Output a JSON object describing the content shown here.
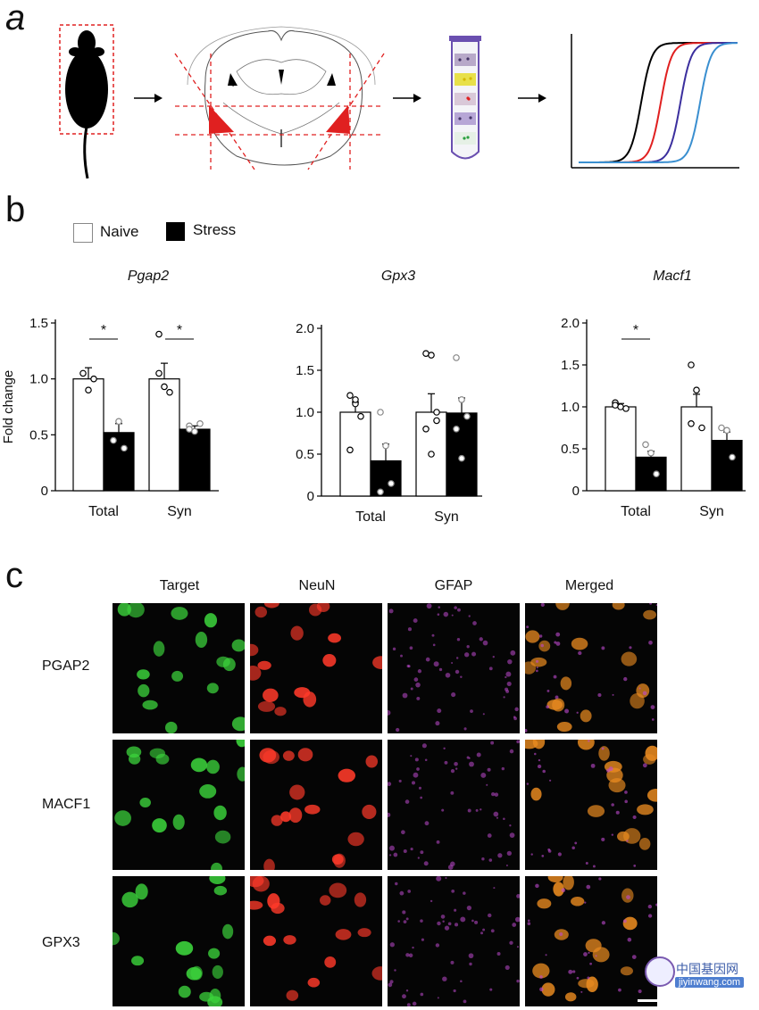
{
  "panels": {
    "a": "a",
    "b": "b",
    "c": "c"
  },
  "legend": {
    "naive": "Naive",
    "stress": "Stress"
  },
  "colors": {
    "naive_fill": "#ffffff",
    "stress_fill": "#000000",
    "red_region": "#e02020"
  },
  "tube_bands": [
    "#b8a9c9",
    "#e8e04a",
    "#d9c8d8",
    "#b7a6d6",
    "#e6f0e6"
  ],
  "panel_a_curve_colors": [
    "#000000",
    "#e02020",
    "#3b2f9e",
    "#3a8fd0"
  ],
  "chart_data": [
    {
      "type": "bar",
      "title": "Pgap2",
      "ylabel": "Fold change",
      "categories": [
        "Total",
        "Syn"
      ],
      "ylim": [
        0,
        1.5
      ],
      "yticks": [
        "0",
        "0.5",
        "1.0",
        "1.5"
      ],
      "series": [
        {
          "name": "Naive",
          "values": [
            1.0,
            1.0
          ],
          "errors": [
            0.1,
            0.14
          ]
        },
        {
          "name": "Stress",
          "values": [
            0.52,
            0.55
          ],
          "errors": [
            0.08,
            0.03
          ]
        }
      ],
      "points": {
        "Naive": [
          [
            1.05,
            0.9,
            1.0
          ],
          [
            1.4,
            0.93,
            0.88,
            1.05
          ]
        ],
        "Stress": [
          [
            0.45,
            0.62,
            0.38
          ],
          [
            0.58,
            0.53,
            0.6,
            0.55
          ]
        ]
      },
      "significance": [
        "*",
        "*"
      ]
    },
    {
      "type": "bar",
      "title": "Gpx3",
      "ylabel": "",
      "categories": [
        "Total",
        "Syn"
      ],
      "ylim": [
        0,
        2.0
      ],
      "yticks": [
        "0",
        "0.5",
        "1.0",
        "1.5",
        "2.0"
      ],
      "series": [
        {
          "name": "Naive",
          "values": [
            1.0,
            1.0
          ],
          "errors": [
            0.12,
            0.22
          ]
        },
        {
          "name": "Stress",
          "values": [
            0.42,
            0.99
          ],
          "errors": [
            0.2,
            0.18
          ]
        }
      ],
      "points": {
        "Naive": [
          [
            1.2,
            1.1,
            0.95,
            0.55,
            1.15
          ],
          [
            1.7,
            1.68,
            0.9,
            0.8,
            0.5,
            1.0
          ]
        ],
        "Stress": [
          [
            1.0,
            0.6,
            0.15,
            0.05
          ],
          [
            1.65,
            1.15,
            0.95,
            0.8,
            0.45
          ]
        ]
      },
      "significance": [
        "",
        ""
      ]
    },
    {
      "type": "bar",
      "title": "Macf1",
      "ylabel": "",
      "categories": [
        "Total",
        "Syn"
      ],
      "ylim": [
        0,
        2.0
      ],
      "yticks": [
        "0",
        "0.5",
        "1.0",
        "1.5",
        "2.0"
      ],
      "series": [
        {
          "name": "Naive",
          "values": [
            1.0,
            1.0
          ],
          "errors": [
            0.04,
            0.15
          ]
        },
        {
          "name": "Stress",
          "values": [
            0.4,
            0.6
          ],
          "errors": [
            0.07,
            0.1
          ]
        }
      ],
      "points": {
        "Naive": [
          [
            1.05,
            1.0,
            0.98,
            1.02
          ],
          [
            1.5,
            1.2,
            0.75,
            0.8
          ]
        ],
        "Stress": [
          [
            0.55,
            0.45,
            0.2
          ],
          [
            0.75,
            0.72,
            0.4
          ]
        ]
      },
      "significance": [
        "*",
        ""
      ]
    }
  ],
  "micrographs": {
    "columns": [
      "Target",
      "NeuN",
      "GFAP",
      "Merged"
    ],
    "rows": [
      "PGAP2",
      "MACF1",
      "GPX3"
    ],
    "column_colors": [
      "#3cd43c",
      "#ff3a2a",
      "#c04ad0",
      "#e88a20"
    ]
  },
  "watermark": {
    "main": "中国基因网",
    "sub": "jiyinwang.com"
  }
}
